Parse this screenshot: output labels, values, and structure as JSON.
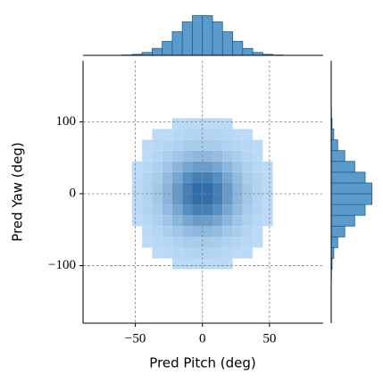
{
  "chart_data": {
    "type": "hist2d",
    "x_label": "Pred Pitch (deg)",
    "y_label": "Pred Yaw (deg)",
    "xlim": [
      -89,
      90
    ],
    "ylim": [
      -180,
      185
    ],
    "xticks": [
      {
        "value": -50,
        "label": "−50"
      },
      0,
      50
    ],
    "yticks": [
      {
        "value": -100,
        "label": "−100"
      },
      0,
      100
    ],
    "grid": true,
    "cmap": [
      "#bcdcf7",
      "#2f6ea8"
    ],
    "x_bins": [
      -60,
      -52.5,
      -45,
      -37.5,
      -30,
      -22.5,
      -15,
      -7.5,
      0,
      7.5,
      15,
      22.5,
      30,
      37.5,
      45,
      52.5,
      60
    ],
    "y_bins": [
      -120,
      -105,
      -90,
      -75,
      -60,
      -45,
      -30,
      -15,
      0,
      15,
      30,
      45,
      60,
      75,
      90,
      105,
      120
    ],
    "counts": [
      [
        0,
        0,
        0,
        0,
        0,
        0,
        0,
        0,
        0,
        0,
        0,
        0,
        0,
        0,
        0,
        0
      ],
      [
        0,
        0,
        0,
        0,
        0,
        1,
        1,
        1,
        1,
        1,
        1,
        0,
        0,
        0,
        0,
        0
      ],
      [
        0,
        0,
        0,
        1,
        1,
        2,
        3,
        4,
        4,
        3,
        2,
        1,
        1,
        0,
        0,
        0
      ],
      [
        0,
        0,
        1,
        2,
        3,
        5,
        8,
        9,
        9,
        8,
        5,
        3,
        2,
        1,
        0,
        0
      ],
      [
        0,
        0,
        1,
        3,
        7,
        11,
        16,
        19,
        19,
        16,
        11,
        7,
        3,
        1,
        0,
        0
      ],
      [
        0,
        1,
        2,
        6,
        12,
        20,
        28,
        33,
        33,
        28,
        20,
        12,
        6,
        2,
        1,
        0
      ],
      [
        0,
        1,
        4,
        8,
        17,
        28,
        40,
        48,
        48,
        40,
        28,
        17,
        8,
        4,
        1,
        0
      ],
      [
        0,
        1,
        4,
        10,
        20,
        34,
        48,
        57,
        57,
        48,
        34,
        20,
        10,
        4,
        1,
        0
      ],
      [
        0,
        1,
        4,
        10,
        20,
        34,
        48,
        57,
        57,
        48,
        34,
        20,
        10,
        4,
        1,
        0
      ],
      [
        0,
        1,
        4,
        8,
        17,
        28,
        40,
        48,
        48,
        40,
        28,
        17,
        8,
        4,
        1,
        0
      ],
      [
        0,
        1,
        2,
        6,
        12,
        20,
        28,
        33,
        33,
        28,
        20,
        12,
        6,
        2,
        1,
        0
      ],
      [
        0,
        0,
        1,
        3,
        7,
        11,
        16,
        19,
        19,
        16,
        11,
        7,
        3,
        1,
        0,
        0
      ],
      [
        0,
        0,
        1,
        2,
        3,
        5,
        8,
        9,
        9,
        8,
        5,
        3,
        2,
        1,
        0,
        0
      ],
      [
        0,
        0,
        0,
        1,
        1,
        2,
        3,
        4,
        4,
        3,
        2,
        1,
        1,
        0,
        0,
        0
      ],
      [
        0,
        0,
        0,
        0,
        0,
        1,
        1,
        1,
        1,
        1,
        1,
        0,
        0,
        0,
        0,
        0
      ],
      [
        0,
        0,
        0,
        0,
        0,
        0,
        0,
        0,
        0,
        0,
        0,
        0,
        0,
        0,
        0,
        0
      ]
    ],
    "marginal_color": "#5a9bcc",
    "marginal_edge": "#1f5f95",
    "marginal_lim": [
      0,
      370
    ],
    "marginal_x_counts": [
      3,
      9,
      25,
      60,
      121,
      204,
      289,
      343,
      343,
      289,
      204,
      121,
      60,
      25,
      9,
      3
    ],
    "marginal_y_counts": [
      2,
      7,
      22,
      56,
      117,
      203,
      293,
      352,
      352,
      293,
      203,
      117,
      56,
      22,
      7,
      2
    ]
  }
}
